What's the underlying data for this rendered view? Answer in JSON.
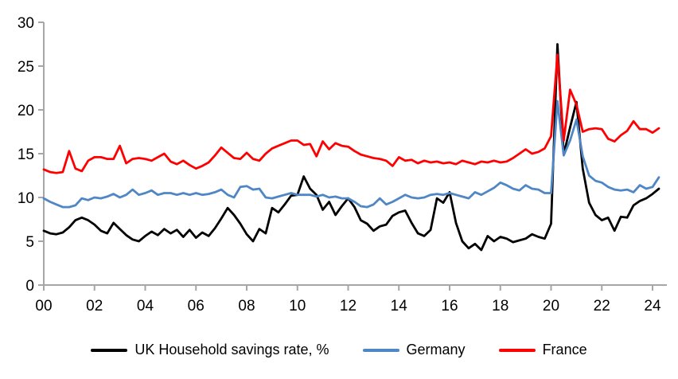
{
  "chart_data": {
    "type": "line",
    "title": "",
    "xlabel": "",
    "ylabel": "",
    "grid": false,
    "legend_position": "bottom",
    "ylim": [
      0,
      30
    ],
    "y_ticks": [
      0,
      5,
      10,
      15,
      20,
      25,
      30
    ],
    "x_start_year": 2000,
    "x_step_years": 0.25,
    "x_tick_labels": [
      "00",
      "02",
      "04",
      "06",
      "08",
      "10",
      "12",
      "14",
      "16",
      "18",
      "20",
      "22",
      "24"
    ],
    "axis_color": "#a6a6a6",
    "series": [
      {
        "id": "uk",
        "name": "UK Household savings rate, %",
        "color": "#000000",
        "values": [
          6.2,
          5.9,
          5.8,
          6.0,
          6.6,
          7.4,
          7.7,
          7.4,
          6.9,
          6.2,
          5.9,
          7.1,
          6.4,
          5.7,
          5.2,
          5.0,
          5.6,
          6.1,
          5.7,
          6.4,
          5.9,
          6.3,
          5.5,
          6.3,
          5.4,
          6.0,
          5.6,
          6.5,
          7.6,
          8.8,
          8.0,
          7.0,
          5.8,
          5.0,
          6.4,
          5.9,
          8.8,
          8.3,
          9.2,
          10.2,
          10.3,
          12.4,
          11.0,
          10.3,
          8.6,
          9.5,
          8.0,
          9.0,
          9.9,
          8.9,
          7.4,
          7.0,
          6.2,
          6.7,
          6.9,
          7.9,
          8.3,
          8.5,
          7.1,
          5.9,
          5.6,
          6.3,
          9.9,
          9.4,
          10.6,
          7.1,
          5.0,
          4.2,
          4.7,
          4.0,
          5.6,
          5.0,
          5.5,
          5.3,
          4.9,
          5.1,
          5.3,
          5.8,
          5.5,
          5.3,
          7.0,
          27.5,
          14.9,
          18.0,
          20.9,
          13.3,
          9.4,
          8.0,
          7.4,
          7.7,
          6.2,
          7.8,
          7.7,
          9.1,
          9.6,
          9.9,
          10.4,
          11.0
        ]
      },
      {
        "id": "germany",
        "name": "Germany",
        "color": "#4f86c6",
        "values": [
          9.9,
          9.5,
          9.2,
          8.9,
          8.9,
          9.1,
          9.9,
          9.7,
          10.0,
          9.9,
          10.1,
          10.4,
          10.0,
          10.3,
          10.9,
          10.3,
          10.5,
          10.8,
          10.3,
          10.5,
          10.5,
          10.3,
          10.5,
          10.3,
          10.5,
          10.3,
          10.4,
          10.6,
          10.9,
          10.3,
          10.0,
          11.2,
          11.3,
          10.9,
          11.0,
          10.0,
          9.9,
          10.1,
          10.3,
          10.5,
          10.3,
          10.3,
          10.3,
          10.1,
          10.3,
          10.0,
          10.1,
          9.9,
          9.9,
          9.5,
          9.0,
          8.9,
          9.2,
          9.9,
          9.2,
          9.5,
          9.9,
          10.3,
          10.0,
          9.9,
          10.0,
          10.3,
          10.4,
          10.3,
          10.5,
          10.3,
          10.1,
          9.9,
          10.6,
          10.3,
          10.7,
          11.1,
          11.7,
          11.4,
          11.0,
          10.8,
          11.4,
          11.0,
          10.9,
          10.5,
          10.5,
          21.0,
          14.8,
          16.5,
          18.9,
          14.7,
          12.5,
          11.9,
          11.7,
          11.2,
          10.9,
          10.8,
          10.9,
          10.6,
          11.4,
          11.0,
          11.2,
          12.3
        ]
      },
      {
        "id": "france",
        "name": "France",
        "color": "#ff0000",
        "values": [
          13.2,
          12.9,
          12.8,
          12.9,
          15.3,
          13.3,
          13.0,
          14.2,
          14.6,
          14.6,
          14.4,
          14.4,
          15.9,
          13.9,
          14.4,
          14.5,
          14.4,
          14.2,
          14.6,
          15.0,
          14.1,
          13.8,
          14.2,
          13.7,
          13.3,
          13.6,
          14.0,
          14.8,
          15.7,
          15.1,
          14.5,
          14.4,
          15.1,
          14.4,
          14.2,
          15.0,
          15.6,
          15.9,
          16.2,
          16.5,
          16.5,
          16.0,
          16.1,
          14.7,
          16.4,
          15.5,
          16.2,
          15.9,
          15.8,
          15.3,
          14.9,
          14.7,
          14.5,
          14.4,
          14.2,
          13.6,
          14.6,
          14.2,
          14.3,
          13.9,
          14.2,
          14.0,
          14.1,
          13.9,
          14.0,
          13.8,
          14.2,
          14.0,
          13.8,
          14.1,
          14.0,
          14.2,
          14.0,
          14.1,
          14.5,
          15.0,
          15.5,
          15.0,
          15.2,
          15.6,
          17.0,
          26.3,
          16.5,
          22.3,
          20.6,
          17.5,
          17.8,
          17.9,
          17.8,
          16.7,
          16.4,
          17.1,
          17.6,
          18.7,
          17.8,
          17.8,
          17.4,
          17.9
        ]
      }
    ]
  }
}
